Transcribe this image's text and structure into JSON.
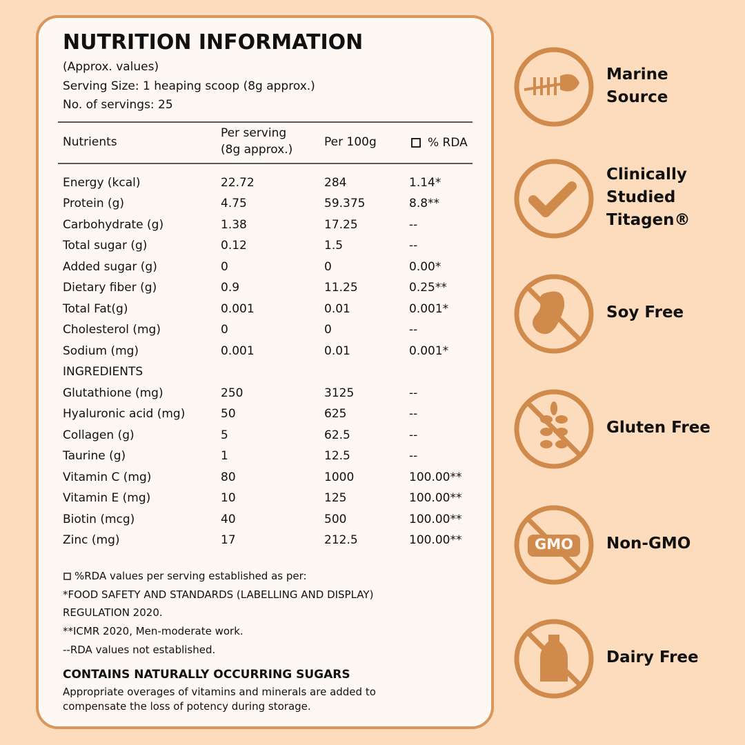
{
  "header": {
    "title": "NUTRITION INFORMATION",
    "lines": [
      "(Approx. values)",
      "Serving Size: 1 heaping scoop (8g approx.)",
      "No. of servings: 25"
    ]
  },
  "table": {
    "columns": [
      "Nutrients",
      [
        "Per serving",
        "(8g approx.)"
      ],
      "Per 100g",
      "% RDA"
    ],
    "nutrients": [
      [
        "Energy (kcal)",
        "22.72",
        "284",
        "1.14*"
      ],
      [
        "Protein (g)",
        "4.75",
        "59.375",
        "8.8**"
      ],
      [
        "Carbohydrate (g)",
        "1.38",
        "17.25",
        "--"
      ],
      [
        "Total sugar (g)",
        "0.12",
        "1.5",
        "--"
      ],
      [
        "Added sugar (g)",
        "0",
        "0",
        "0.00*"
      ],
      [
        "Dietary fiber (g)",
        "0.9",
        "11.25",
        "0.25**"
      ],
      [
        "Total Fat(g)",
        "0.001",
        "0.01",
        "0.001*"
      ],
      [
        "Cholesterol (mg)",
        "0",
        "0",
        "--"
      ],
      [
        "Sodium (mg)",
        "0.001",
        "0.01",
        "0.001*"
      ]
    ],
    "ingredients_heading": "INGREDIENTS",
    "ingredients": [
      [
        "Glutathione (mg)",
        "250",
        "3125",
        "--"
      ],
      [
        "Hyaluronic acid (mg)",
        "50",
        "625",
        "--"
      ],
      [
        "Collagen (g)",
        "5",
        "62.5",
        "--"
      ],
      [
        "Taurine (g)",
        "1",
        "12.5",
        "--"
      ],
      [
        "Vitamin C (mg)",
        "80",
        "1000",
        "100.00**"
      ],
      [
        "Vitamin E (mg)",
        "10",
        "125",
        "100.00**"
      ],
      [
        "Biotin (mcg)",
        "40",
        "500",
        "100.00**"
      ],
      [
        "Zinc (mg)",
        "17",
        "212.5",
        "100.00**"
      ]
    ]
  },
  "footnotes": [
    "%RDA values per serving established as per:",
    "*FOOD SAFETY AND STANDARDS (LABELLING AND DISPLAY)",
    "REGULATION 2020.",
    "**ICMR 2020, Men-moderate work.",
    "--RDA values not established."
  ],
  "notice": {
    "title": "CONTAINS NATURALLY OCCURRING SUGARS",
    "lines": [
      "Appropriate overages of vitamins and minerals are added to",
      "compensate the loss of potency during storage."
    ]
  },
  "badges": [
    [
      "Marine",
      "Source"
    ],
    [
      "Clinically",
      "Studied",
      "Titagen®"
    ],
    [
      "Soy Free"
    ],
    [
      "Gluten Free"
    ],
    [
      "Non-GMO"
    ],
    [
      "Dairy Free"
    ]
  ],
  "gmo_icon_text": "GMO"
}
